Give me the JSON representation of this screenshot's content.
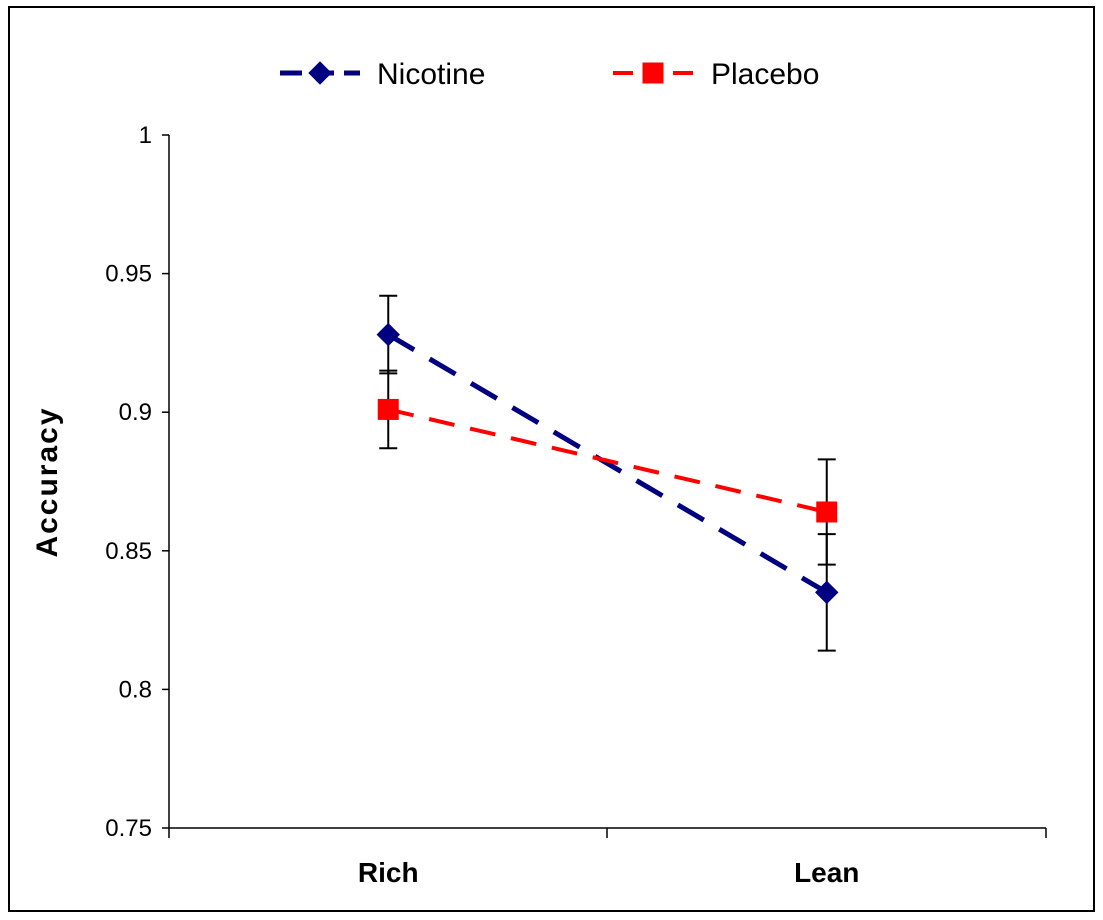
{
  "chart_data": {
    "type": "line",
    "categories": [
      "Rich",
      "Lean"
    ],
    "ylabel": "Accuracy",
    "xlabel": "",
    "ylim": [
      0.75,
      1
    ],
    "yticks": [
      "0.75",
      "0.8",
      "0.85",
      "0.9",
      "0.95",
      "1"
    ],
    "grid": false,
    "legend_position": "top",
    "series": [
      {
        "name": "Nicotine",
        "values": [
          0.928,
          0.835
        ],
        "error": [
          0.014,
          0.021
        ],
        "color": "#000080",
        "marker": "diamond",
        "line_style": "dashed"
      },
      {
        "name": "Placebo",
        "values": [
          0.901,
          0.864
        ],
        "error": [
          0.014,
          0.019
        ],
        "color": "#ff0000",
        "marker": "square",
        "line_style": "dashed"
      }
    ]
  }
}
